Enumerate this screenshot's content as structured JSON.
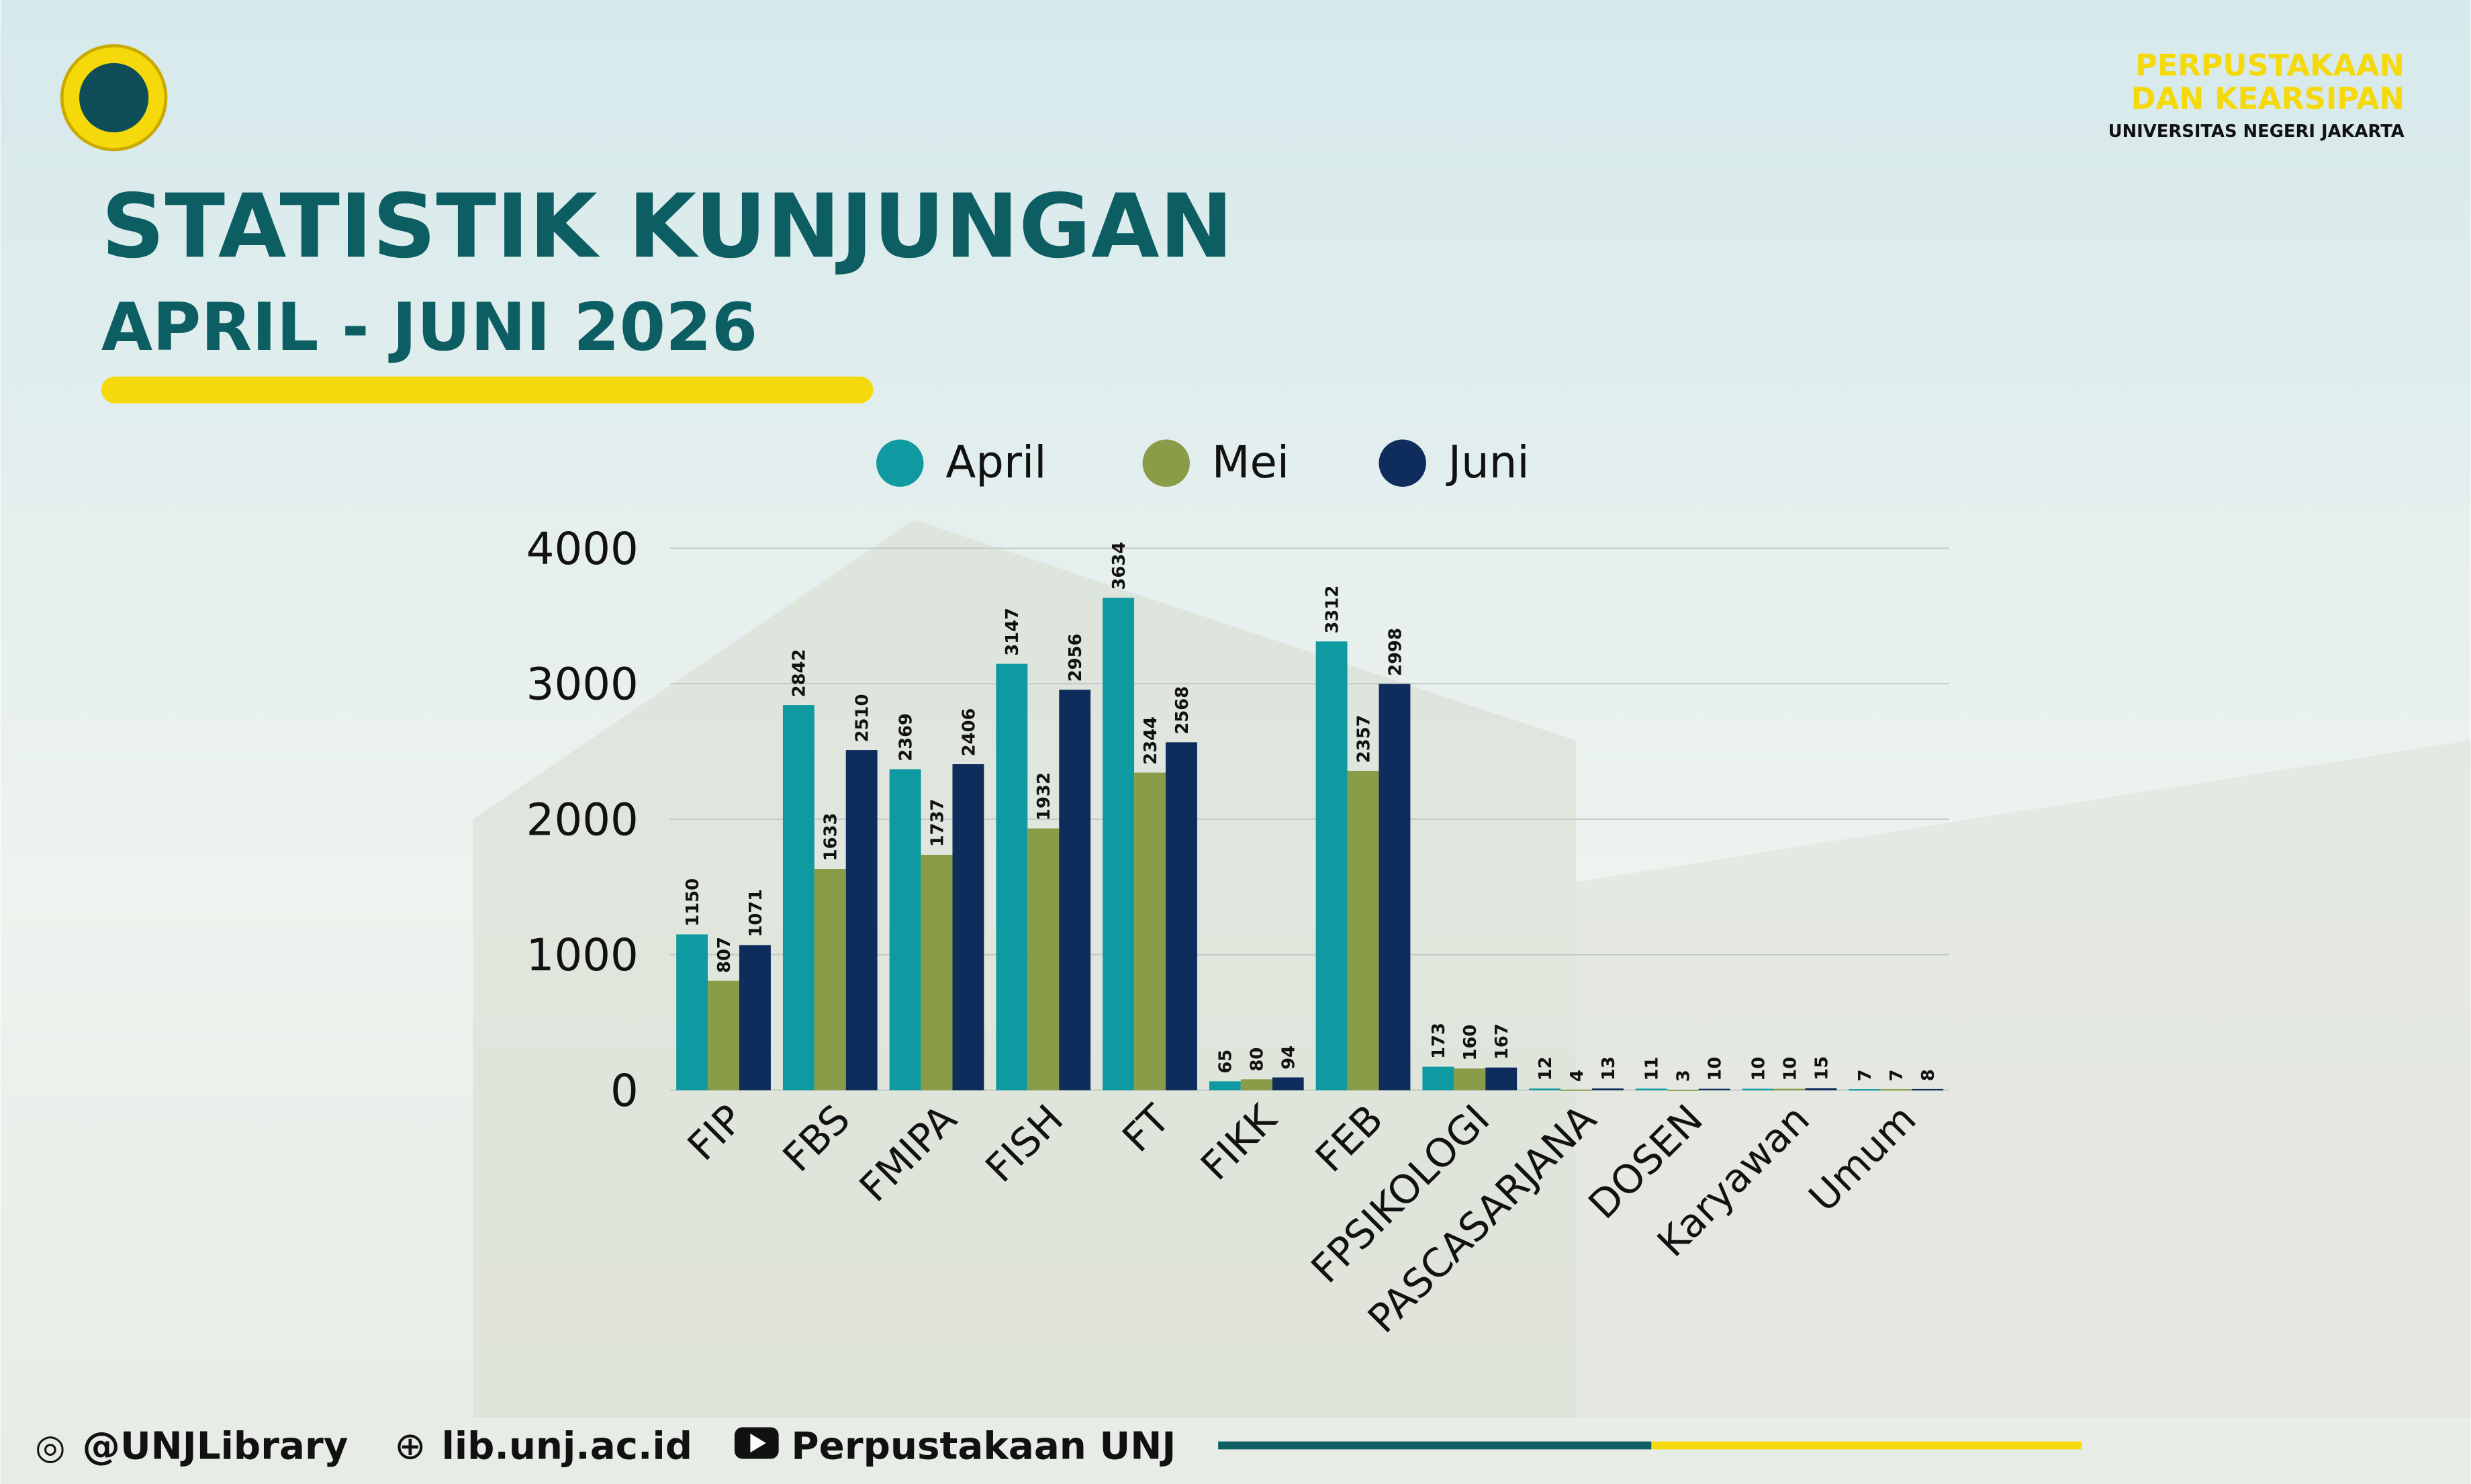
{
  "header": {
    "org_line1": "PERPUSTAKAAN",
    "org_line2": "DAN KEARSIPAN",
    "org_line3": "UNIVERSITAS NEGERI JAKARTA"
  },
  "chart_data": {
    "type": "bar",
    "title": "STATISTIK KUNJUNGAN",
    "subtitle": "APRIL - JUNI 2026",
    "categories": [
      "FIP",
      "FBS",
      "FMIPA",
      "FISH",
      "FT",
      "FIKK",
      "FEB",
      "FPSIKOLOGI",
      "PASCASARJANA",
      "DOSEN",
      "Karyawan",
      "Umum"
    ],
    "series": [
      {
        "name": "April",
        "color": "#0e9aa0",
        "values": [
          1150,
          2842,
          2369,
          3147,
          3634,
          65,
          3312,
          173,
          12,
          11,
          10,
          7
        ]
      },
      {
        "name": "Mei",
        "color": "#8a9c48",
        "values": [
          807,
          1633,
          1737,
          1932,
          2344,
          80,
          2357,
          160,
          4,
          3,
          10,
          7
        ]
      },
      {
        "name": "Juni",
        "color": "#0f2d5c",
        "values": [
          1071,
          2510,
          2406,
          2956,
          2568,
          94,
          2998,
          167,
          13,
          10,
          15,
          8
        ]
      }
    ],
    "ylim": [
      0,
      4000
    ],
    "yticks": [
      0,
      1000,
      2000,
      3000,
      4000
    ],
    "grid": true,
    "legend": "top"
  },
  "footer": {
    "instagram": "@UNJLibrary",
    "website": "lib.unj.ac.id",
    "youtube": "Perpustakaan UNJ"
  }
}
